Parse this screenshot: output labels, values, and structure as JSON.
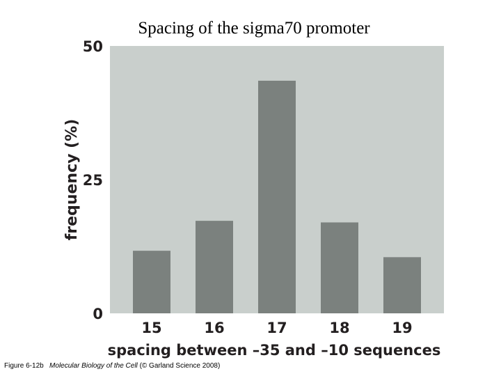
{
  "title": "Spacing of the sigma70 promoter",
  "caption": {
    "figure": "Figure 6-12b",
    "book": "Molecular Biology of the Cell",
    "credit": "(© Garland Science 2008)"
  },
  "colors": {
    "plot_background": "#c9cfcc",
    "bar": "#7b817e",
    "text": "#231f20"
  },
  "chart_data": {
    "type": "bar",
    "categories": [
      "15",
      "16",
      "17",
      "18",
      "19"
    ],
    "values": [
      11.7,
      17.3,
      43.5,
      17.0,
      10.5
    ],
    "xlabel": "spacing between –35 and –10 sequences",
    "ylabel": "frequency (%)",
    "ylim": [
      0,
      50
    ],
    "yticks": [
      "0",
      "25",
      "50"
    ],
    "grid": false,
    "legend": "none"
  }
}
